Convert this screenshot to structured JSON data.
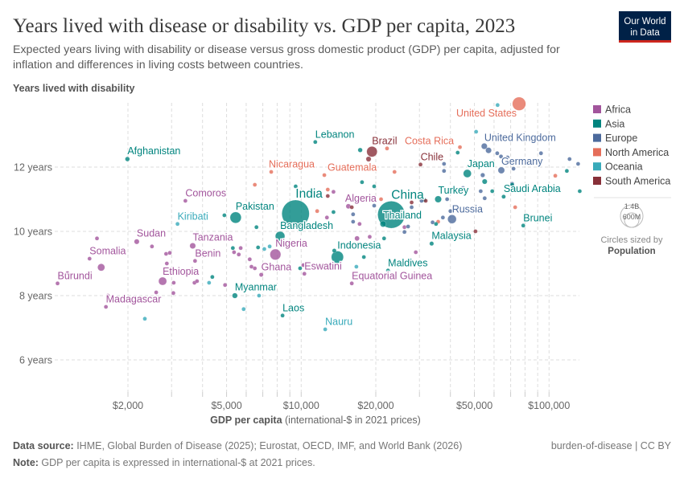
{
  "header": {
    "title": "Years lived with disease or disability vs. GDP per capita, 2023",
    "subtitle_line1": "Expected years living with disability or disease versus gross domestic product (GDP) per capita, adjusted for",
    "subtitle_line2": "inflation and differences in living costs between countries.",
    "logo_line1": "Our World",
    "logo_line2": "in Data"
  },
  "footer": {
    "source_label": "Data source:",
    "source_text": " IHME, Global Burden of Disease (2025); Eurostat, OECD, IMF, and World Bank (2026)",
    "note_label": "Note:",
    "note_text": " GDP per capita is expressed in international-$ at 2021 prices.",
    "license": "burden-of-disease | CC BY"
  },
  "size_legend": {
    "large": "1.4B",
    "small": "600M",
    "caption": "Circles sized by",
    "variable": "Population",
    "values_millions": [
      1400,
      600
    ]
  },
  "chart_data": {
    "type": "scatter",
    "title": "Years lived with disease or disability vs. GDP per capita, 2023",
    "ylabel": "Years lived with disability",
    "xlabel_bold": "GDP per capita",
    "xlabel_rest": " (international-$ in 2021 prices)",
    "x_scale": "log",
    "xlim": [
      1000,
      130000
    ],
    "ylim": [
      5,
      14
    ],
    "x_ticks": [
      {
        "value": 2000,
        "label": "$2,000"
      },
      {
        "value": 5000,
        "label": "$5,000"
      },
      {
        "value": 10000,
        "label": "$10,000"
      },
      {
        "value": 20000,
        "label": "$20,000"
      },
      {
        "value": 50000,
        "label": "$50,000"
      },
      {
        "value": 100000,
        "label": "$100,000"
      }
    ],
    "y_ticks": [
      {
        "value": 6,
        "label": "6 years"
      },
      {
        "value": 8,
        "label": "8 years"
      },
      {
        "value": 10,
        "label": "10 years"
      },
      {
        "value": 12,
        "label": "12 years"
      }
    ],
    "grid": true,
    "legend_position": "right",
    "regions": [
      {
        "name": "Africa",
        "color": "#a2559c"
      },
      {
        "name": "Asia",
        "color": "#00847e"
      },
      {
        "name": "Europe",
        "color": "#4c6a9c"
      },
      {
        "name": "North America",
        "color": "#e56e5a"
      },
      {
        "name": "Oceania",
        "color": "#38aaba"
      },
      {
        "name": "South America",
        "color": "#883039"
      }
    ],
    "labeled_points": [
      {
        "name": "United States",
        "region": "North America",
        "gdp": 75700,
        "yld": 13.97,
        "pop": 343
      },
      {
        "name": "United Kingdom",
        "region": "Europe",
        "gdp": 54800,
        "yld": 12.65,
        "pop": 69
      },
      {
        "name": "Lebanon",
        "region": "Asia",
        "gdp": 11400,
        "yld": 12.78,
        "pop": 5.8
      },
      {
        "name": "Brazil",
        "region": "South America",
        "gdp": 19300,
        "yld": 12.48,
        "pop": 211
      },
      {
        "name": "Costa Rica",
        "region": "North America",
        "gdp": 22200,
        "yld": 12.58,
        "pop": 5.1
      },
      {
        "name": "Chile",
        "region": "South America",
        "gdp": 30300,
        "yld": 12.08,
        "pop": 19.6
      },
      {
        "name": "Afghanistan",
        "region": "Asia",
        "gdp": 1990,
        "yld": 12.25,
        "pop": 41
      },
      {
        "name": "Nicaragua",
        "region": "North America",
        "gdp": 7570,
        "yld": 11.85,
        "pop": 7
      },
      {
        "name": "Guatemala",
        "region": "North America",
        "gdp": 12400,
        "yld": 11.75,
        "pop": 18
      },
      {
        "name": "Japan",
        "region": "Asia",
        "gdp": 46800,
        "yld": 11.8,
        "pop": 124
      },
      {
        "name": "Germany",
        "region": "Europe",
        "gdp": 64200,
        "yld": 11.9,
        "pop": 84
      },
      {
        "name": "India",
        "region": "Asia",
        "gdp": 9490,
        "yld": 10.55,
        "pop": 1438
      },
      {
        "name": "China",
        "region": "Asia",
        "gdp": 23100,
        "yld": 10.52,
        "pop": 1410
      },
      {
        "name": "Turkey",
        "region": "Asia",
        "gdp": 35700,
        "yld": 11.0,
        "pop": 86
      },
      {
        "name": "Saudi Arabia",
        "region": "Asia",
        "gdp": 65600,
        "yld": 11.08,
        "pop": 33
      },
      {
        "name": "Comoros",
        "region": "Africa",
        "gdp": 3410,
        "yld": 10.95,
        "pop": 0.85
      },
      {
        "name": "Algeria",
        "region": "Africa",
        "gdp": 15500,
        "yld": 10.78,
        "pop": 46
      },
      {
        "name": "Pakistan",
        "region": "Asia",
        "gdp": 5440,
        "yld": 10.43,
        "pop": 240
      },
      {
        "name": "Kiribati",
        "region": "Oceania",
        "gdp": 3170,
        "yld": 10.23,
        "pop": 0.13
      },
      {
        "name": "Thailand",
        "region": "Asia",
        "gdp": 21400,
        "yld": 10.23,
        "pop": 71
      },
      {
        "name": "Russia",
        "region": "Europe",
        "gdp": 40600,
        "yld": 10.38,
        "pop": 144
      },
      {
        "name": "Brunei",
        "region": "Asia",
        "gdp": 78700,
        "yld": 10.18,
        "pop": 0.45
      },
      {
        "name": "Bangladesh",
        "region": "Asia",
        "gdp": 8220,
        "yld": 9.85,
        "pop": 172
      },
      {
        "name": "Sudan",
        "region": "Africa",
        "gdp": 2170,
        "yld": 9.68,
        "pop": 50
      },
      {
        "name": "Tanzania",
        "region": "Africa",
        "gdp": 3650,
        "yld": 9.55,
        "pop": 67
      },
      {
        "name": "Malaysia",
        "region": "Asia",
        "gdp": 33600,
        "yld": 9.62,
        "pop": 35
      },
      {
        "name": "Somalia",
        "region": "Africa",
        "gdp": 1400,
        "yld": 9.15,
        "pop": 18
      },
      {
        "name": "Nigeria",
        "region": "Africa",
        "gdp": 7870,
        "yld": 9.28,
        "pop": 225
      },
      {
        "name": "Benin",
        "region": "Africa",
        "gdp": 3730,
        "yld": 9.08,
        "pop": 14
      },
      {
        "name": "Indonesia",
        "region": "Asia",
        "gdp": 14000,
        "yld": 9.2,
        "pop": 280
      },
      {
        "name": "Ghana",
        "region": "Africa",
        "gdp": 6900,
        "yld": 8.65,
        "pop": 34
      },
      {
        "name": "Eswatini",
        "region": "Africa",
        "gdp": 10300,
        "yld": 8.68,
        "pop": 1.2
      },
      {
        "name": "Maldives",
        "region": "Asia",
        "gdp": 22400,
        "yld": 8.78,
        "pop": 0.52
      },
      {
        "name": "Burundi",
        "region": "Africa",
        "gdp": 1040,
        "yld": 8.38,
        "pop": 13
      },
      {
        "name": "Ethiopia",
        "region": "Africa",
        "gdp": 2760,
        "yld": 8.45,
        "pop": 126
      },
      {
        "name": "Equatorial Guinea",
        "region": "Africa",
        "gdp": 16000,
        "yld": 8.38,
        "pop": 1.7
      },
      {
        "name": "Myanmar",
        "region": "Asia",
        "gdp": 5400,
        "yld": 8.0,
        "pop": 54
      },
      {
        "name": "Madagascar",
        "region": "Africa",
        "gdp": 1630,
        "yld": 7.65,
        "pop": 31
      },
      {
        "name": "Laos",
        "region": "Asia",
        "gdp": 8410,
        "yld": 7.38,
        "pop": 7.6
      },
      {
        "name": "Nauru",
        "region": "Oceania",
        "gdp": 12500,
        "yld": 6.95,
        "pop": 0.01
      }
    ],
    "other_points": [
      {
        "region": "North America",
        "gdp": 6500,
        "yld": 11.45,
        "pop": 3
      },
      {
        "region": "Asia",
        "gdp": 9500,
        "yld": 11.4,
        "pop": 3
      },
      {
        "region": "Asia",
        "gdp": 4900,
        "yld": 10.5,
        "pop": 10
      },
      {
        "region": "Asia",
        "gdp": 6600,
        "yld": 10.13,
        "pop": 3
      },
      {
        "region": "Africa",
        "gdp": 1500,
        "yld": 9.78,
        "pop": 12
      },
      {
        "region": "Africa",
        "gdp": 2500,
        "yld": 9.53,
        "pop": 5
      },
      {
        "region": "Africa",
        "gdp": 2850,
        "yld": 9.3,
        "pop": 6
      },
      {
        "region": "Africa",
        "gdp": 2950,
        "yld": 9.33,
        "pop": 4
      },
      {
        "region": "Africa",
        "gdp": 2870,
        "yld": 9.0,
        "pop": 4
      },
      {
        "region": "Africa",
        "gdp": 1560,
        "yld": 8.88,
        "pop": 100
      },
      {
        "region": "Africa",
        "gdp": 1140,
        "yld": 8.7,
        "pop": 5
      },
      {
        "region": "Africa",
        "gdp": 1660,
        "yld": 8.0,
        "pop": 5
      },
      {
        "region": "Africa",
        "gdp": 2600,
        "yld": 8.1,
        "pop": 4
      },
      {
        "region": "Africa",
        "gdp": 3050,
        "yld": 8.08,
        "pop": 5
      },
      {
        "region": "Africa",
        "gdp": 3060,
        "yld": 8.4,
        "pop": 5
      },
      {
        "region": "Africa",
        "gdp": 3710,
        "yld": 8.4,
        "pop": 4
      },
      {
        "region": "Africa",
        "gdp": 3800,
        "yld": 8.45,
        "pop": 4
      },
      {
        "region": "Oceania",
        "gdp": 4250,
        "yld": 8.4,
        "pop": 3
      },
      {
        "region": "Asia",
        "gdp": 4380,
        "yld": 8.58,
        "pop": 3
      },
      {
        "region": "Africa",
        "gdp": 4930,
        "yld": 8.33,
        "pop": 5
      },
      {
        "region": "Africa",
        "gdp": 5360,
        "yld": 9.35,
        "pop": 4
      },
      {
        "region": "Asia",
        "gdp": 5300,
        "yld": 9.48,
        "pop": 3
      },
      {
        "region": "Africa",
        "gdp": 5700,
        "yld": 9.48,
        "pop": 30
      },
      {
        "region": "Africa",
        "gdp": 5600,
        "yld": 9.28,
        "pop": 4
      },
      {
        "region": "Africa",
        "gdp": 6200,
        "yld": 9.13,
        "pop": 4
      },
      {
        "region": "Africa",
        "gdp": 6300,
        "yld": 8.9,
        "pop": 4
      },
      {
        "region": "Africa",
        "gdp": 6500,
        "yld": 8.85,
        "pop": 6
      },
      {
        "region": "Oceania",
        "gdp": 6760,
        "yld": 8.0,
        "pop": 3
      },
      {
        "region": "Oceania",
        "gdp": 5860,
        "yld": 7.58,
        "pop": 3
      },
      {
        "region": "Oceania",
        "gdp": 2340,
        "yld": 7.28,
        "pop": 3
      },
      {
        "region": "Asia",
        "gdp": 6700,
        "yld": 9.5,
        "pop": 3
      },
      {
        "region": "Oceania",
        "gdp": 7100,
        "yld": 9.45,
        "pop": 3
      },
      {
        "region": "Oceania",
        "gdp": 7460,
        "yld": 9.53,
        "pop": 3
      },
      {
        "region": "Africa",
        "gdp": 10200,
        "yld": 8.95,
        "pop": 4
      },
      {
        "region": "Asia",
        "gdp": 9900,
        "yld": 8.85,
        "pop": 22
      },
      {
        "region": "Asia",
        "gdp": 17300,
        "yld": 12.53,
        "pop": 40
      },
      {
        "region": "South America",
        "gdp": 18700,
        "yld": 12.25,
        "pop": 50
      },
      {
        "region": "Asia",
        "gdp": 19700,
        "yld": 11.4,
        "pop": 3
      },
      {
        "region": "North America",
        "gdp": 23800,
        "yld": 11.85,
        "pop": 3
      },
      {
        "region": "North America",
        "gdp": 16700,
        "yld": 12.0,
        "pop": 3
      },
      {
        "region": "North America",
        "gdp": 43700,
        "yld": 12.62,
        "pop": 4
      },
      {
        "region": "Europe",
        "gdp": 37700,
        "yld": 12.1,
        "pop": 3
      },
      {
        "region": "Asia",
        "gdp": 42800,
        "yld": 12.45,
        "pop": 3
      },
      {
        "region": "Europe",
        "gdp": 37700,
        "yld": 11.88,
        "pop": 3
      },
      {
        "region": "Europe",
        "gdp": 54000,
        "yld": 11.75,
        "pop": 38
      },
      {
        "region": "Asia",
        "gdp": 55000,
        "yld": 11.55,
        "pop": 50
      },
      {
        "region": "Europe",
        "gdp": 57000,
        "yld": 12.52,
        "pop": 66
      },
      {
        "region": "Oceania",
        "gdp": 50800,
        "yld": 13.1,
        "pop": 4
      },
      {
        "region": "Oceania",
        "gdp": 62000,
        "yld": 13.93,
        "pop": 5
      },
      {
        "region": "Europe",
        "gdp": 61800,
        "yld": 12.43,
        "pop": 3
      },
      {
        "region": "Europe",
        "gdp": 64000,
        "yld": 12.33,
        "pop": 4
      },
      {
        "region": "Europe",
        "gdp": 68000,
        "yld": 12.3,
        "pop": 3
      },
      {
        "region": "Europe",
        "gdp": 71900,
        "yld": 11.95,
        "pop": 3
      },
      {
        "region": "Europe",
        "gdp": 92800,
        "yld": 12.43,
        "pop": 3
      },
      {
        "region": "Europe",
        "gdp": 121000,
        "yld": 12.25,
        "pop": 3
      },
      {
        "region": "Europe",
        "gdp": 131000,
        "yld": 12.1,
        "pop": 3
      },
      {
        "region": "Asia",
        "gdp": 118000,
        "yld": 11.88,
        "pop": 3
      },
      {
        "region": "North America",
        "gdp": 106000,
        "yld": 11.73,
        "pop": 3
      },
      {
        "region": "Europe",
        "gdp": 71000,
        "yld": 11.48,
        "pop": 3
      },
      {
        "region": "Asia",
        "gdp": 71000,
        "yld": 11.45,
        "pop": 3
      },
      {
        "region": "Asia",
        "gdp": 59000,
        "yld": 11.25,
        "pop": 3
      },
      {
        "region": "Europe",
        "gdp": 53000,
        "yld": 11.25,
        "pop": 3
      },
      {
        "region": "Asia",
        "gdp": 133000,
        "yld": 11.25,
        "pop": 3
      },
      {
        "region": "North America",
        "gdp": 73000,
        "yld": 10.75,
        "pop": 3
      },
      {
        "region": "Europe",
        "gdp": 55000,
        "yld": 11.03,
        "pop": 3
      },
      {
        "region": "Europe",
        "gdp": 45000,
        "yld": 11.35,
        "pop": 10
      },
      {
        "region": "Europe",
        "gdp": 38800,
        "yld": 11.0,
        "pop": 3
      },
      {
        "region": "Europe",
        "gdp": 40000,
        "yld": 10.63,
        "pop": 3
      },
      {
        "region": "Europe",
        "gdp": 37300,
        "yld": 10.43,
        "pop": 3
      },
      {
        "region": "North America",
        "gdp": 35700,
        "yld": 10.3,
        "pop": 3
      },
      {
        "region": "Asia",
        "gdp": 35000,
        "yld": 10.23,
        "pop": 3
      },
      {
        "region": "Europe",
        "gdp": 33900,
        "yld": 10.28,
        "pop": 3
      },
      {
        "region": "Asia",
        "gdp": 31400,
        "yld": 10.98,
        "pop": 3
      },
      {
        "region": "Europe",
        "gdp": 30600,
        "yld": 10.95,
        "pop": 3
      },
      {
        "region": "South America",
        "gdp": 31800,
        "yld": 10.95,
        "pop": 3
      },
      {
        "region": "South America",
        "gdp": 27900,
        "yld": 10.9,
        "pop": 10
      },
      {
        "region": "Europe",
        "gdp": 27900,
        "yld": 10.75,
        "pop": 3
      },
      {
        "region": "South America",
        "gdp": 50500,
        "yld": 10.0,
        "pop": 3
      },
      {
        "region": "Europe",
        "gdp": 19700,
        "yld": 10.8,
        "pop": 3
      },
      {
        "region": "North America",
        "gdp": 21000,
        "yld": 11.0,
        "pop": 3
      },
      {
        "region": "Asia",
        "gdp": 17600,
        "yld": 11.53,
        "pop": 3
      },
      {
        "region": "North America",
        "gdp": 12800,
        "yld": 11.3,
        "pop": 3
      },
      {
        "region": "Africa",
        "gdp": 13500,
        "yld": 11.23,
        "pop": 3
      },
      {
        "region": "South America",
        "gdp": 12800,
        "yld": 11.1,
        "pop": 3
      },
      {
        "region": "South America",
        "gdp": 16000,
        "yld": 10.75,
        "pop": 3
      },
      {
        "region": "Europe",
        "gdp": 16200,
        "yld": 10.53,
        "pop": 3
      },
      {
        "region": "Europe",
        "gdp": 16200,
        "yld": 10.3,
        "pop": 10
      },
      {
        "region": "Africa",
        "gdp": 17200,
        "yld": 10.23,
        "pop": 3
      },
      {
        "region": "Asia",
        "gdp": 13500,
        "yld": 10.6,
        "pop": 10
      },
      {
        "region": "North America",
        "gdp": 11600,
        "yld": 10.63,
        "pop": 3
      },
      {
        "region": "Africa",
        "gdp": 12700,
        "yld": 10.43,
        "pop": 3
      },
      {
        "region": "Africa",
        "gdp": 16800,
        "yld": 9.78,
        "pop": 45
      },
      {
        "region": "Africa",
        "gdp": 18900,
        "yld": 9.83,
        "pop": 3
      },
      {
        "region": "Asia",
        "gdp": 21600,
        "yld": 9.78,
        "pop": 3
      },
      {
        "region": "Africa",
        "gdp": 26100,
        "yld": 10.13,
        "pop": 3
      },
      {
        "region": "Europe",
        "gdp": 27000,
        "yld": 10.15,
        "pop": 3
      },
      {
        "region": "Europe",
        "gdp": 26100,
        "yld": 9.98,
        "pop": 3
      },
      {
        "region": "Asia",
        "gdp": 17900,
        "yld": 9.2,
        "pop": 3
      },
      {
        "region": "Oceania",
        "gdp": 16700,
        "yld": 8.9,
        "pop": 3
      },
      {
        "region": "Asia",
        "gdp": 13600,
        "yld": 9.4,
        "pop": 34
      },
      {
        "region": "Africa",
        "gdp": 29000,
        "yld": 9.35,
        "pop": 3
      }
    ]
  }
}
